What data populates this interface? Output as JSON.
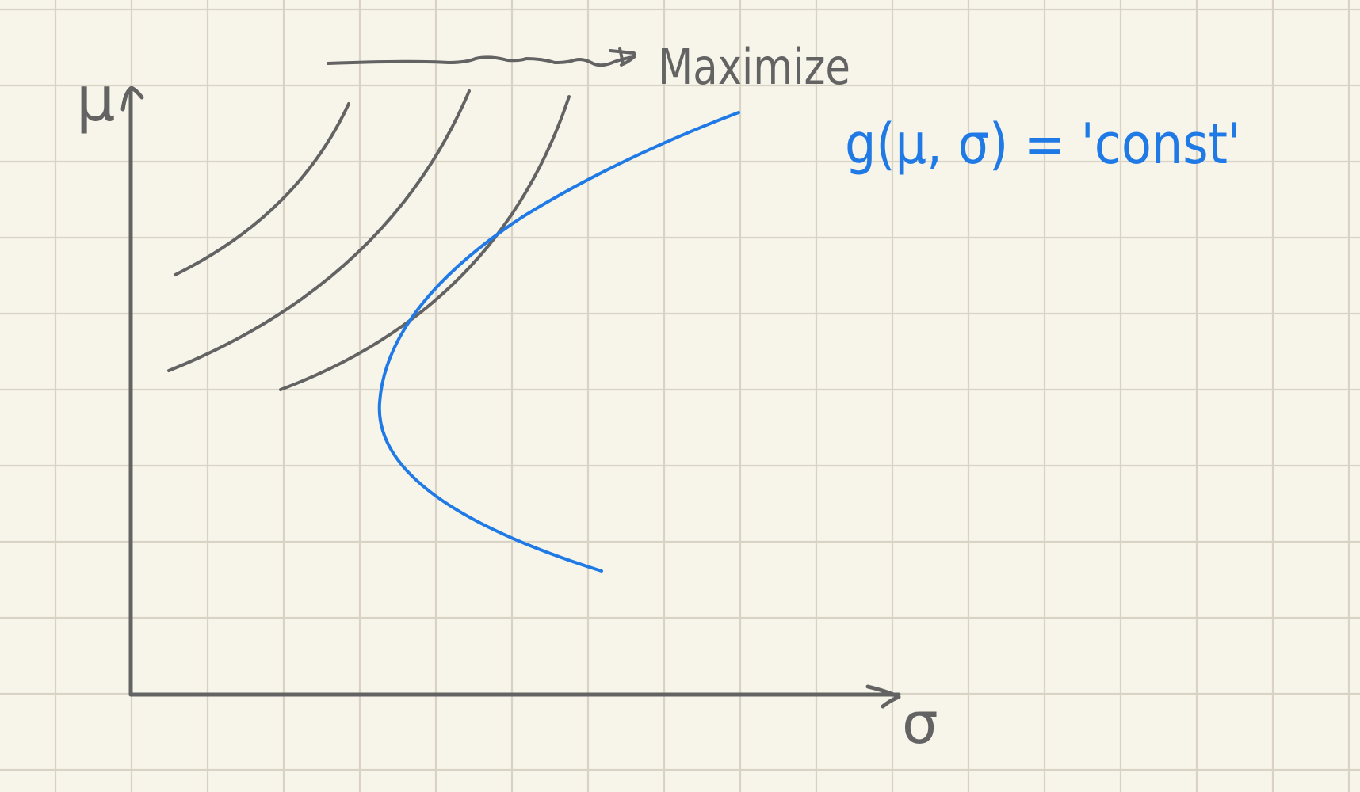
{
  "colors": {
    "paper": "#f7f4ea",
    "grid": "#d8d3c4",
    "ink_gray": "#636363",
    "ink_blue": "#1f7ae6"
  },
  "axes": {
    "y_label": "μ",
    "x_label": "σ"
  },
  "annotations": {
    "arrow_label": "Maximize",
    "constraint_text": "g(μ, σ) = 'const'"
  }
}
